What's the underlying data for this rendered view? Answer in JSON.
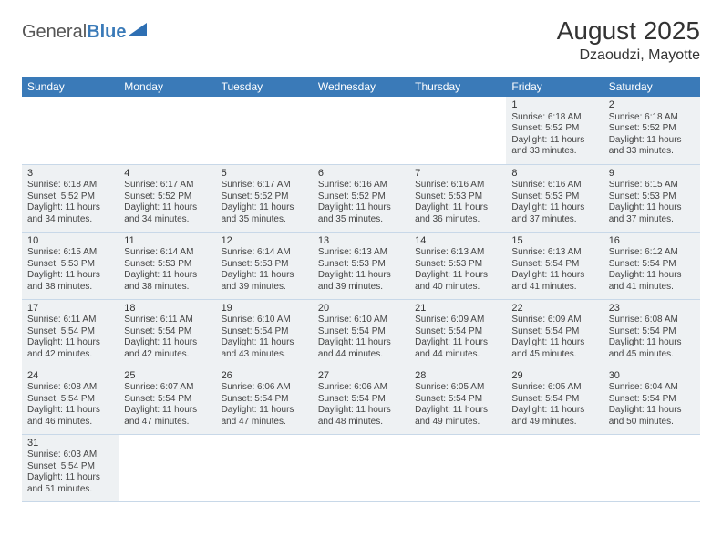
{
  "logo": {
    "text1": "General",
    "text2": "Blue"
  },
  "title": {
    "month": "August 2025",
    "location": "Dzaoudzi, Mayotte"
  },
  "colors": {
    "header_bg": "#3a7ab8",
    "header_fg": "#ffffff",
    "row_alt": "#eef1f3",
    "border": "#c8d8e8"
  },
  "weekdays": [
    "Sunday",
    "Monday",
    "Tuesday",
    "Wednesday",
    "Thursday",
    "Friday",
    "Saturday"
  ],
  "weeks": [
    [
      null,
      null,
      null,
      null,
      null,
      {
        "d": "1",
        "sr": "6:18 AM",
        "ss": "5:52 PM",
        "dl": "11 hours and 33 minutes."
      },
      {
        "d": "2",
        "sr": "6:18 AM",
        "ss": "5:52 PM",
        "dl": "11 hours and 33 minutes."
      }
    ],
    [
      {
        "d": "3",
        "sr": "6:18 AM",
        "ss": "5:52 PM",
        "dl": "11 hours and 34 minutes."
      },
      {
        "d": "4",
        "sr": "6:17 AM",
        "ss": "5:52 PM",
        "dl": "11 hours and 34 minutes."
      },
      {
        "d": "5",
        "sr": "6:17 AM",
        "ss": "5:52 PM",
        "dl": "11 hours and 35 minutes."
      },
      {
        "d": "6",
        "sr": "6:16 AM",
        "ss": "5:52 PM",
        "dl": "11 hours and 35 minutes."
      },
      {
        "d": "7",
        "sr": "6:16 AM",
        "ss": "5:53 PM",
        "dl": "11 hours and 36 minutes."
      },
      {
        "d": "8",
        "sr": "6:16 AM",
        "ss": "5:53 PM",
        "dl": "11 hours and 37 minutes."
      },
      {
        "d": "9",
        "sr": "6:15 AM",
        "ss": "5:53 PM",
        "dl": "11 hours and 37 minutes."
      }
    ],
    [
      {
        "d": "10",
        "sr": "6:15 AM",
        "ss": "5:53 PM",
        "dl": "11 hours and 38 minutes."
      },
      {
        "d": "11",
        "sr": "6:14 AM",
        "ss": "5:53 PM",
        "dl": "11 hours and 38 minutes."
      },
      {
        "d": "12",
        "sr": "6:14 AM",
        "ss": "5:53 PM",
        "dl": "11 hours and 39 minutes."
      },
      {
        "d": "13",
        "sr": "6:13 AM",
        "ss": "5:53 PM",
        "dl": "11 hours and 39 minutes."
      },
      {
        "d": "14",
        "sr": "6:13 AM",
        "ss": "5:53 PM",
        "dl": "11 hours and 40 minutes."
      },
      {
        "d": "15",
        "sr": "6:13 AM",
        "ss": "5:54 PM",
        "dl": "11 hours and 41 minutes."
      },
      {
        "d": "16",
        "sr": "6:12 AM",
        "ss": "5:54 PM",
        "dl": "11 hours and 41 minutes."
      }
    ],
    [
      {
        "d": "17",
        "sr": "6:11 AM",
        "ss": "5:54 PM",
        "dl": "11 hours and 42 minutes."
      },
      {
        "d": "18",
        "sr": "6:11 AM",
        "ss": "5:54 PM",
        "dl": "11 hours and 42 minutes."
      },
      {
        "d": "19",
        "sr": "6:10 AM",
        "ss": "5:54 PM",
        "dl": "11 hours and 43 minutes."
      },
      {
        "d": "20",
        "sr": "6:10 AM",
        "ss": "5:54 PM",
        "dl": "11 hours and 44 minutes."
      },
      {
        "d": "21",
        "sr": "6:09 AM",
        "ss": "5:54 PM",
        "dl": "11 hours and 44 minutes."
      },
      {
        "d": "22",
        "sr": "6:09 AM",
        "ss": "5:54 PM",
        "dl": "11 hours and 45 minutes."
      },
      {
        "d": "23",
        "sr": "6:08 AM",
        "ss": "5:54 PM",
        "dl": "11 hours and 45 minutes."
      }
    ],
    [
      {
        "d": "24",
        "sr": "6:08 AM",
        "ss": "5:54 PM",
        "dl": "11 hours and 46 minutes."
      },
      {
        "d": "25",
        "sr": "6:07 AM",
        "ss": "5:54 PM",
        "dl": "11 hours and 47 minutes."
      },
      {
        "d": "26",
        "sr": "6:06 AM",
        "ss": "5:54 PM",
        "dl": "11 hours and 47 minutes."
      },
      {
        "d": "27",
        "sr": "6:06 AM",
        "ss": "5:54 PM",
        "dl": "11 hours and 48 minutes."
      },
      {
        "d": "28",
        "sr": "6:05 AM",
        "ss": "5:54 PM",
        "dl": "11 hours and 49 minutes."
      },
      {
        "d": "29",
        "sr": "6:05 AM",
        "ss": "5:54 PM",
        "dl": "11 hours and 49 minutes."
      },
      {
        "d": "30",
        "sr": "6:04 AM",
        "ss": "5:54 PM",
        "dl": "11 hours and 50 minutes."
      }
    ],
    [
      {
        "d": "31",
        "sr": "6:03 AM",
        "ss": "5:54 PM",
        "dl": "11 hours and 51 minutes."
      },
      null,
      null,
      null,
      null,
      null,
      null
    ]
  ],
  "labels": {
    "sunrise": "Sunrise: ",
    "sunset": "Sunset: ",
    "daylight": "Daylight: "
  }
}
